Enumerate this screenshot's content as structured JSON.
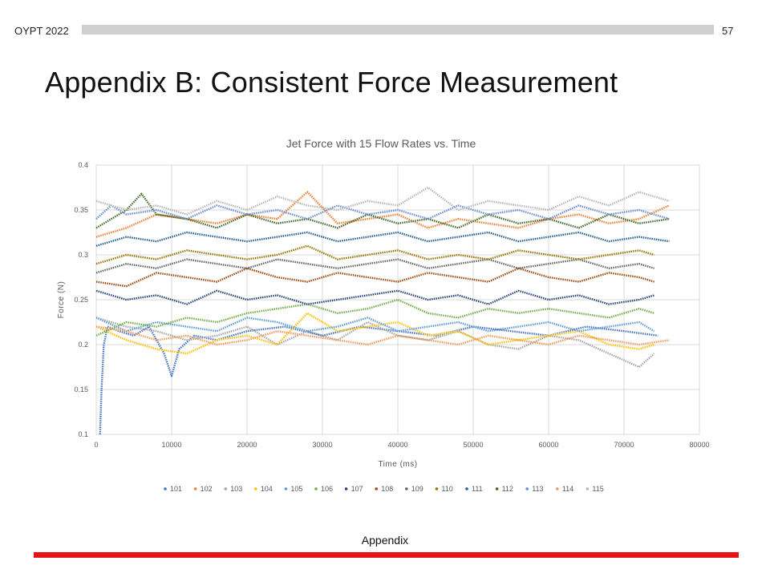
{
  "header": {
    "label": "OYPT 2022",
    "page_number": "57"
  },
  "slide": {
    "title": "Appendix B: Consistent Force Measurement",
    "footer": "Appendix"
  },
  "colors": {
    "header_bar": "#cfcfcf",
    "footer_bar": "#e8121a"
  },
  "chart_data": {
    "type": "line",
    "title": "Jet Force with 15 Flow Rates vs. Time",
    "xlabel": "Time (ms)",
    "ylabel": "Force (N)",
    "xlim": [
      0,
      80000
    ],
    "ylim": [
      0.1,
      0.4
    ],
    "xticks": [
      0,
      10000,
      20000,
      30000,
      40000,
      50000,
      60000,
      70000,
      80000
    ],
    "yticks": [
      0.1,
      0.15,
      0.2,
      0.25,
      0.3,
      0.35,
      0.4
    ],
    "ytick_labels": [
      "0.1",
      "0.15",
      "0.2",
      "0.25",
      "0.3",
      "0.35",
      "0.4"
    ],
    "grid": "horizontal and vertical",
    "legend_position": "bottom",
    "marker_style": "dotted lines",
    "series": [
      {
        "name": "101",
        "color": "#4472c4",
        "x": [
          500,
          700,
          1000,
          1500,
          3000,
          5000,
          7000,
          9000,
          10000,
          11000,
          13000,
          16000,
          20000,
          25000,
          30000,
          35000,
          40000,
          45000,
          50000,
          55000,
          60000,
          65000,
          70000,
          74500
        ],
        "values": [
          0.1,
          0.15,
          0.2,
          0.22,
          0.215,
          0.21,
          0.22,
          0.19,
          0.165,
          0.195,
          0.21,
          0.205,
          0.215,
          0.22,
          0.21,
          0.22,
          0.215,
          0.21,
          0.22,
          0.215,
          0.21,
          0.22,
          0.215,
          0.21
        ]
      },
      {
        "name": "102",
        "color": "#ed7d31",
        "x": [
          0,
          4000,
          8000,
          12000,
          16000,
          20000,
          24000,
          28000,
          32000,
          36000,
          40000,
          44000,
          48000,
          52000,
          56000,
          60000,
          64000,
          68000,
          72000,
          76000
        ],
        "values": [
          0.32,
          0.33,
          0.345,
          0.34,
          0.335,
          0.345,
          0.34,
          0.37,
          0.335,
          0.34,
          0.345,
          0.33,
          0.34,
          0.335,
          0.33,
          0.34,
          0.345,
          0.335,
          0.34,
          0.355
        ]
      },
      {
        "name": "103",
        "color": "#a5a5a5",
        "x": [
          0,
          4000,
          8000,
          12000,
          16000,
          20000,
          24000,
          28000,
          32000,
          36000,
          40000,
          44000,
          48000,
          52000,
          56000,
          60000,
          64000,
          68000,
          72000,
          74000
        ],
        "values": [
          0.23,
          0.22,
          0.215,
          0.205,
          0.21,
          0.22,
          0.2,
          0.215,
          0.205,
          0.225,
          0.21,
          0.205,
          0.215,
          0.2,
          0.195,
          0.21,
          0.205,
          0.19,
          0.175,
          0.19
        ]
      },
      {
        "name": "104",
        "color": "#ffc000",
        "x": [
          0,
          4000,
          8000,
          12000,
          16000,
          20000,
          24000,
          28000,
          32000,
          36000,
          40000,
          44000,
          48000,
          52000,
          56000,
          60000,
          64000,
          68000,
          72000,
          74000
        ],
        "values": [
          0.22,
          0.205,
          0.195,
          0.19,
          0.205,
          0.21,
          0.2,
          0.235,
          0.215,
          0.22,
          0.225,
          0.21,
          0.215,
          0.2,
          0.205,
          0.21,
          0.215,
          0.2,
          0.195,
          0.2
        ]
      },
      {
        "name": "105",
        "color": "#5b9bd5",
        "x": [
          0,
          4000,
          8000,
          12000,
          16000,
          20000,
          24000,
          28000,
          32000,
          36000,
          40000,
          44000,
          48000,
          52000,
          56000,
          60000,
          64000,
          68000,
          72000,
          74000
        ],
        "values": [
          0.23,
          0.215,
          0.225,
          0.22,
          0.215,
          0.23,
          0.225,
          0.215,
          0.22,
          0.23,
          0.215,
          0.22,
          0.225,
          0.215,
          0.22,
          0.225,
          0.215,
          0.22,
          0.225,
          0.215
        ]
      },
      {
        "name": "106",
        "color": "#70ad47",
        "x": [
          0,
          4000,
          8000,
          12000,
          16000,
          20000,
          24000,
          28000,
          32000,
          36000,
          40000,
          44000,
          48000,
          52000,
          56000,
          60000,
          64000,
          68000,
          72000,
          74000
        ],
        "values": [
          0.21,
          0.225,
          0.22,
          0.23,
          0.225,
          0.235,
          0.24,
          0.245,
          0.235,
          0.24,
          0.25,
          0.235,
          0.23,
          0.24,
          0.235,
          0.24,
          0.235,
          0.23,
          0.24,
          0.235
        ]
      },
      {
        "name": "107",
        "color": "#264478",
        "x": [
          0,
          4000,
          8000,
          12000,
          16000,
          20000,
          24000,
          28000,
          32000,
          36000,
          40000,
          44000,
          48000,
          52000,
          56000,
          60000,
          64000,
          68000,
          72000,
          74000
        ],
        "values": [
          0.26,
          0.25,
          0.255,
          0.245,
          0.26,
          0.25,
          0.255,
          0.245,
          0.25,
          0.255,
          0.26,
          0.25,
          0.255,
          0.245,
          0.26,
          0.25,
          0.255,
          0.245,
          0.25,
          0.255
        ]
      },
      {
        "name": "108",
        "color": "#9e480e",
        "x": [
          0,
          4000,
          8000,
          12000,
          16000,
          20000,
          24000,
          28000,
          32000,
          36000,
          40000,
          44000,
          48000,
          52000,
          56000,
          60000,
          64000,
          68000,
          72000,
          74000
        ],
        "values": [
          0.27,
          0.265,
          0.28,
          0.275,
          0.27,
          0.285,
          0.275,
          0.27,
          0.28,
          0.275,
          0.27,
          0.28,
          0.275,
          0.27,
          0.285,
          0.275,
          0.27,
          0.28,
          0.275,
          0.27
        ]
      },
      {
        "name": "109",
        "color": "#636363",
        "x": [
          0,
          4000,
          8000,
          12000,
          16000,
          20000,
          24000,
          28000,
          32000,
          36000,
          40000,
          44000,
          48000,
          52000,
          56000,
          60000,
          64000,
          68000,
          72000,
          74000
        ],
        "values": [
          0.28,
          0.29,
          0.285,
          0.295,
          0.29,
          0.285,
          0.295,
          0.29,
          0.285,
          0.29,
          0.295,
          0.285,
          0.29,
          0.295,
          0.285,
          0.29,
          0.295,
          0.285,
          0.29,
          0.285
        ]
      },
      {
        "name": "110",
        "color": "#997300",
        "x": [
          0,
          4000,
          8000,
          12000,
          16000,
          20000,
          24000,
          28000,
          32000,
          36000,
          40000,
          44000,
          48000,
          52000,
          56000,
          60000,
          64000,
          68000,
          72000,
          74000
        ],
        "values": [
          0.29,
          0.3,
          0.295,
          0.305,
          0.3,
          0.295,
          0.3,
          0.31,
          0.295,
          0.3,
          0.305,
          0.295,
          0.3,
          0.295,
          0.305,
          0.3,
          0.295,
          0.3,
          0.305,
          0.3
        ]
      },
      {
        "name": "111",
        "color": "#255e91",
        "x": [
          0,
          4000,
          8000,
          12000,
          16000,
          20000,
          24000,
          28000,
          32000,
          36000,
          40000,
          44000,
          48000,
          52000,
          56000,
          60000,
          64000,
          68000,
          72000,
          76000
        ],
        "values": [
          0.31,
          0.32,
          0.315,
          0.325,
          0.32,
          0.315,
          0.32,
          0.325,
          0.315,
          0.32,
          0.325,
          0.315,
          0.32,
          0.325,
          0.315,
          0.32,
          0.325,
          0.315,
          0.32,
          0.315
        ]
      },
      {
        "name": "112",
        "color": "#43682b",
        "x": [
          0,
          4000,
          6000,
          8000,
          12000,
          16000,
          20000,
          24000,
          28000,
          32000,
          36000,
          40000,
          44000,
          48000,
          52000,
          56000,
          60000,
          64000,
          68000,
          72000,
          76000
        ],
        "values": [
          0.33,
          0.35,
          0.368,
          0.345,
          0.34,
          0.33,
          0.345,
          0.335,
          0.34,
          0.33,
          0.345,
          0.335,
          0.34,
          0.33,
          0.345,
          0.335,
          0.34,
          0.33,
          0.345,
          0.335,
          0.34
        ]
      },
      {
        "name": "113",
        "color": "#698ed0",
        "x": [
          0,
          2000,
          4000,
          8000,
          12000,
          16000,
          20000,
          24000,
          28000,
          32000,
          36000,
          40000,
          44000,
          48000,
          52000,
          56000,
          60000,
          64000,
          68000,
          72000,
          76000
        ],
        "values": [
          0.34,
          0.355,
          0.345,
          0.35,
          0.34,
          0.355,
          0.345,
          0.35,
          0.34,
          0.355,
          0.345,
          0.35,
          0.34,
          0.355,
          0.345,
          0.35,
          0.34,
          0.355,
          0.345,
          0.35,
          0.34
        ]
      },
      {
        "name": "114",
        "color": "#f1975a",
        "x": [
          0,
          4000,
          8000,
          12000,
          16000,
          20000,
          24000,
          28000,
          32000,
          36000,
          40000,
          44000,
          48000,
          52000,
          56000,
          60000,
          64000,
          68000,
          72000,
          76000
        ],
        "values": [
          0.22,
          0.215,
          0.205,
          0.21,
          0.2,
          0.205,
          0.215,
          0.21,
          0.205,
          0.2,
          0.21,
          0.205,
          0.2,
          0.21,
          0.205,
          0.2,
          0.21,
          0.205,
          0.2,
          0.205
        ]
      },
      {
        "name": "115",
        "color": "#b7b7b7",
        "x": [
          0,
          4000,
          8000,
          12000,
          16000,
          20000,
          24000,
          28000,
          32000,
          36000,
          40000,
          44000,
          48000,
          52000,
          56000,
          60000,
          64000,
          68000,
          72000,
          76000
        ],
        "values": [
          0.36,
          0.35,
          0.355,
          0.345,
          0.36,
          0.35,
          0.365,
          0.355,
          0.35,
          0.36,
          0.355,
          0.375,
          0.35,
          0.36,
          0.355,
          0.35,
          0.365,
          0.355,
          0.37,
          0.36
        ]
      }
    ]
  }
}
